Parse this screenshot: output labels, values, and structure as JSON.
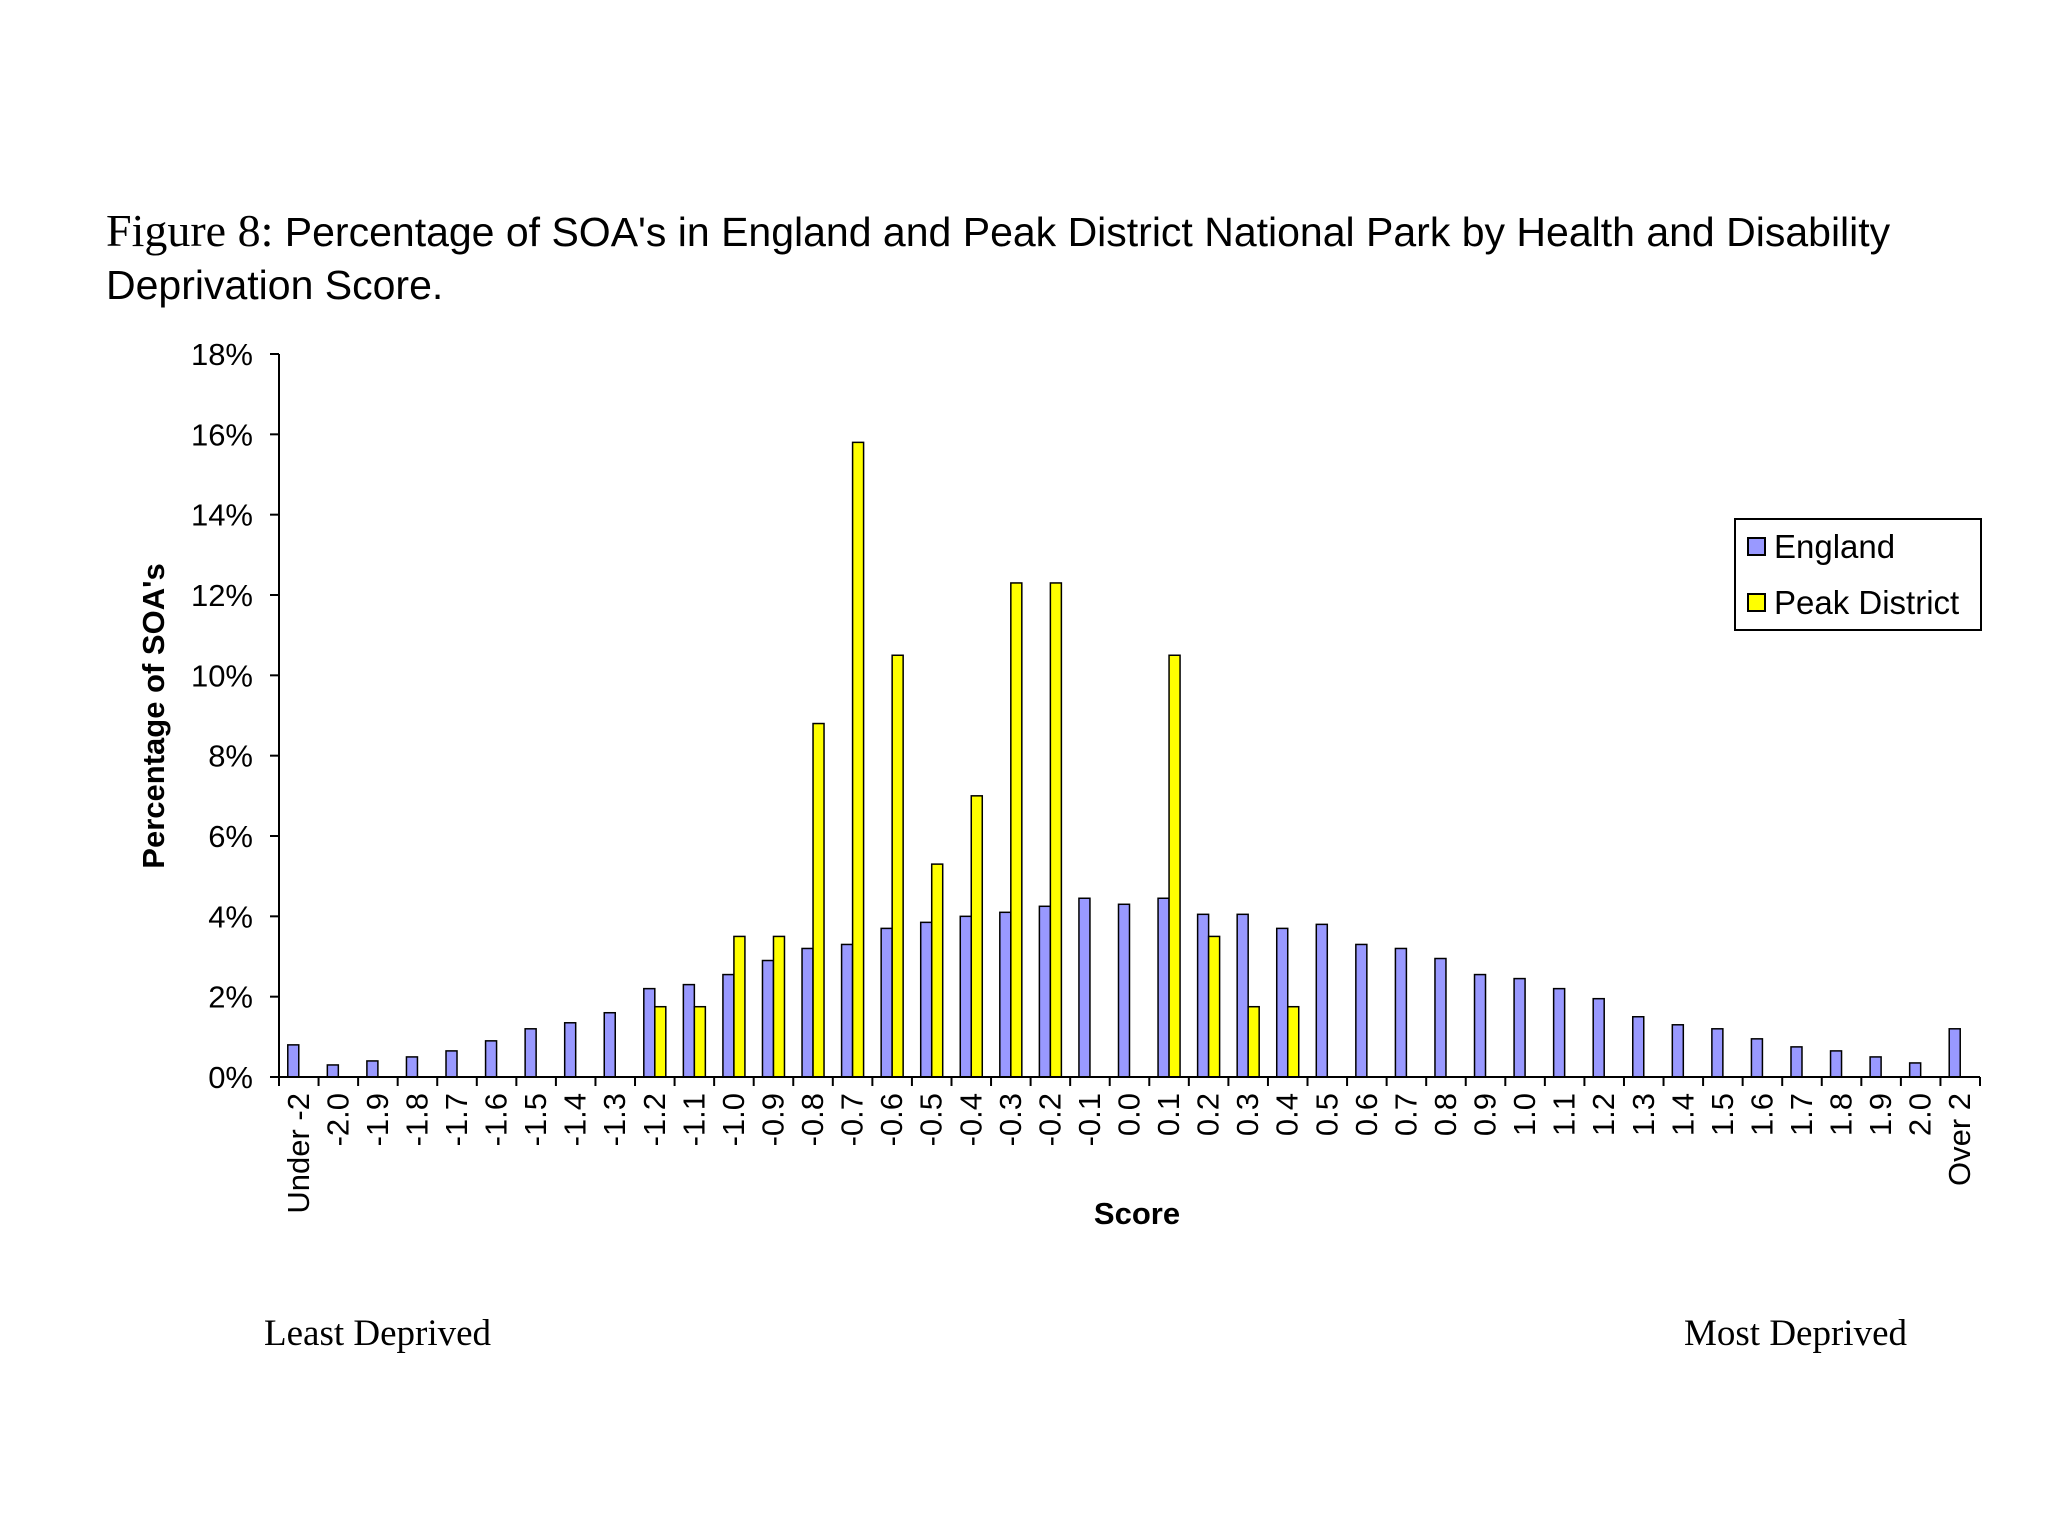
{
  "figure": {
    "number_label": "Figure 8:",
    "title_text": " Percentage of SOA's in England and Peak District National Park by Health and Disability Deprivation Score."
  },
  "footer": {
    "left_label": "Least Deprived",
    "right_label": "Most Deprived"
  },
  "colors": {
    "england": "#9999ff",
    "peak_district": "#ffff00",
    "outline": "#000000"
  },
  "chart_data": {
    "type": "bar",
    "title": "Figure 8: Percentage of SOA's in England and Peak District National Park by Health and Disability Deprivation Score.",
    "xlabel": "Score",
    "ylabel": "Percentage of SOA's",
    "ylim": [
      0,
      18
    ],
    "yticks": [
      "0%",
      "2%",
      "4%",
      "6%",
      "8%",
      "10%",
      "12%",
      "14%",
      "16%",
      "18%"
    ],
    "ytick_values": [
      0,
      2,
      4,
      6,
      8,
      10,
      12,
      14,
      16,
      18
    ],
    "legend_position": "right",
    "categories": [
      "Under -2",
      "-2.0",
      "-1.9",
      "-1.8",
      "-1.7",
      "-1.6",
      "-1.5",
      "-1.4",
      "-1.3",
      "-1.2",
      "-1.1",
      "-1.0",
      "-0.9",
      "-0.8",
      "-0.7",
      "-0.6",
      "-0.5",
      "-0.4",
      "-0.3",
      "-0.2",
      "-0.1",
      "0.0",
      "0.1",
      "0.2",
      "0.3",
      "0.4",
      "0.5",
      "0.6",
      "0.7",
      "0.8",
      "0.9",
      "1.0",
      "1.1",
      "1.2",
      "1.3",
      "1.4",
      "1.5",
      "1.6",
      "1.7",
      "1.8",
      "1.9",
      "2.0",
      "Over 2"
    ],
    "series": [
      {
        "name": "England",
        "values": [
          0.8,
          0.3,
          0.4,
          0.5,
          0.65,
          0.9,
          1.2,
          1.35,
          1.6,
          2.2,
          2.3,
          2.55,
          2.9,
          3.2,
          3.3,
          3.7,
          3.85,
          4.0,
          4.1,
          4.25,
          4.45,
          4.3,
          4.45,
          4.05,
          4.05,
          3.7,
          3.8,
          3.3,
          3.2,
          2.95,
          2.55,
          2.45,
          2.2,
          1.95,
          1.5,
          1.3,
          1.2,
          0.95,
          0.75,
          0.65,
          0.5,
          0.35,
          1.2
        ]
      },
      {
        "name": "Peak District",
        "values": [
          0,
          0,
          0,
          0,
          0,
          0,
          0,
          0,
          0,
          1.75,
          1.75,
          3.5,
          3.5,
          8.8,
          15.8,
          10.5,
          5.3,
          7.0,
          12.3,
          12.3,
          0,
          0,
          10.5,
          3.5,
          1.75,
          1.75,
          0,
          0,
          0,
          0,
          0,
          0,
          0,
          0,
          0,
          0,
          0,
          0,
          0,
          0,
          0,
          0,
          0
        ]
      }
    ]
  }
}
